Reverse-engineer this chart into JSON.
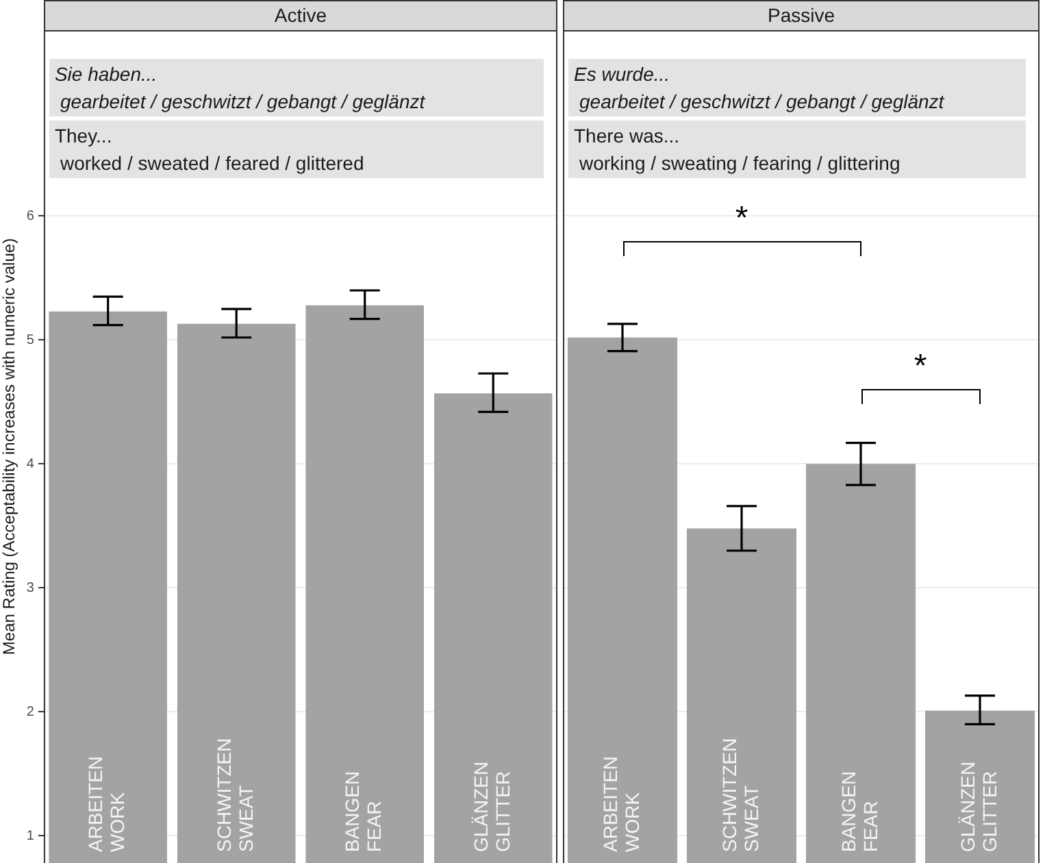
{
  "chart_data": [
    {
      "type": "bar",
      "title": "Active",
      "ylabel": "Mean Rating (Acceptability increases with numeric value)",
      "categories": [
        "ARBEITEN WORK",
        "SCHWITZEN SWEAT",
        "BANGEN FEAR",
        "GLÄNZEN GLITTER"
      ],
      "values": [
        5.23,
        5.13,
        5.28,
        4.57
      ],
      "color": "#a3a3a3",
      "errors": [
        [
          5.12,
          5.35
        ],
        [
          5.02,
          5.25
        ],
        [
          5.17,
          5.4
        ],
        [
          4.42,
          4.73
        ]
      ],
      "ylim": [
        0.78,
        7.5
      ],
      "yticks": [
        1,
        2,
        3,
        4,
        5,
        6
      ],
      "grid": "y",
      "annotations": [
        "Sie haben...",
        "gearbeitet / geschwitzt / gebangt / geglänzt",
        "They...",
        "worked / sweated / feared / glittered"
      ]
    },
    {
      "type": "bar",
      "title": "Passive",
      "categories": [
        "ARBEITEN WORK",
        "SCHWITZEN SWEAT",
        "BANGEN FEAR",
        "GLÄNZEN GLITTER"
      ],
      "values": [
        5.02,
        3.48,
        4.0,
        2.01
      ],
      "color": "#a3a3a3",
      "errors": [
        [
          4.91,
          5.13
        ],
        [
          3.3,
          3.66
        ],
        [
          3.83,
          4.17
        ],
        [
          1.9,
          2.13
        ]
      ],
      "ylim": [
        0.78,
        7.5
      ],
      "yticks": [
        1,
        2,
        3,
        4,
        5,
        6
      ],
      "grid": "y",
      "tick_labels": "x",
      "annotations": [
        "Es wurde...",
        "gearbeitet / geschwitzt / gebangt / geglänzt",
        "There was...",
        "working / sweating / fearing / glittering",
        "*",
        "*"
      ]
    }
  ]
}
